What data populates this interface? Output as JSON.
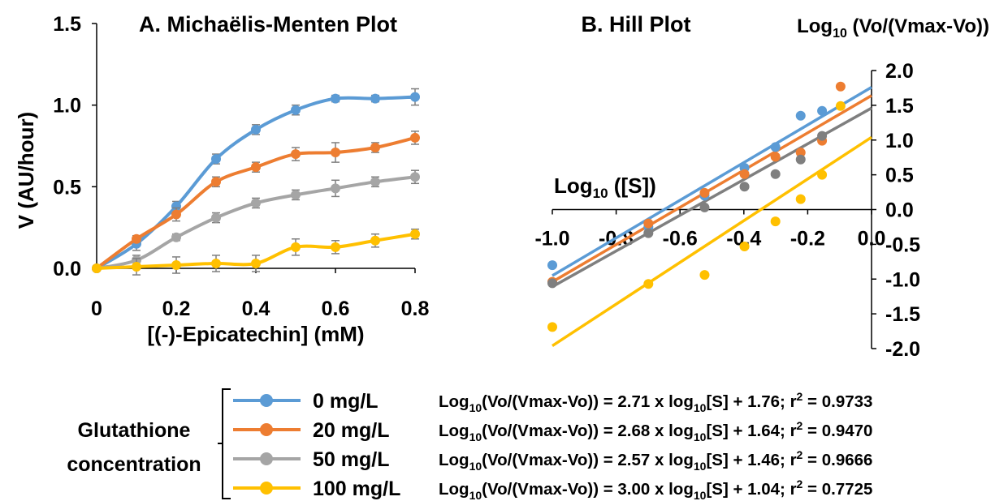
{
  "chart_data": [
    {
      "type": "line",
      "title": "A. Michaëlis-Menten Plot",
      "x_label": "[(-)-Epicatechin] (mM)",
      "y_label": "V (AU/hour)",
      "x": [
        0,
        0.1,
        0.2,
        0.3,
        0.4,
        0.5,
        0.6,
        0.7,
        0.8
      ],
      "xlim": [
        0,
        0.8
      ],
      "xticks": [
        0,
        0.2,
        0.4,
        0.6,
        0.8
      ],
      "ylim": [
        0,
        1.5
      ],
      "yticks": [
        {
          "value": 0,
          "label": "0.0"
        },
        {
          "value": 0.5,
          "label": "0.5"
        },
        {
          "value": 1,
          "label": "1.0"
        },
        {
          "value": 1.5,
          "label": "1.5"
        }
      ],
      "series": [
        {
          "name": "0 mg/L",
          "color": "#5b9bd5",
          "values": [
            0,
            0.15,
            0.38,
            0.67,
            0.85,
            0.97,
            1.04,
            1.04,
            1.05
          ],
          "errors": [
            0.01,
            0.04,
            0.03,
            0.03,
            0.03,
            0.03,
            0.02,
            0.02,
            0.05
          ]
        },
        {
          "name": "20 mg/L",
          "color": "#ed7d31",
          "values": [
            0,
            0.18,
            0.33,
            0.53,
            0.62,
            0.7,
            0.71,
            0.74,
            0.8
          ],
          "errors": [
            0.01,
            0.02,
            0.04,
            0.03,
            0.03,
            0.04,
            0.06,
            0.03,
            0.04
          ]
        },
        {
          "name": "50 mg/L",
          "color": "#a5a5a5",
          "values": [
            0,
            0.05,
            0.19,
            0.31,
            0.4,
            0.45,
            0.49,
            0.53,
            0.56
          ],
          "errors": [
            0.01,
            0.03,
            0.02,
            0.03,
            0.03,
            0.03,
            0.05,
            0.03,
            0.04
          ]
        },
        {
          "name": "100 mg/L",
          "color": "#ffc000",
          "values": [
            0,
            0.01,
            0.02,
            0.03,
            0.03,
            0.13,
            0.13,
            0.17,
            0.21
          ],
          "errors": [
            0.01,
            0.05,
            0.05,
            0.05,
            0.05,
            0.05,
            0.04,
            0.04,
            0.03
          ]
        }
      ]
    },
    {
      "type": "scatter",
      "title": "B. Hill Plot",
      "x_label": [
        "Log",
        "10",
        " ([S])"
      ],
      "y_label": [
        "Log",
        "10",
        " (Vo/(Vmax-Vo))"
      ],
      "x": [
        -1,
        -0.699,
        -0.523,
        -0.398,
        -0.301,
        -0.222,
        -0.155,
        -0.097
      ],
      "xlim": [
        -1,
        0
      ],
      "xticks": [
        {
          "value": -1,
          "label": "-1.0"
        },
        {
          "value": -0.8,
          "label": "-0.8"
        },
        {
          "value": -0.6,
          "label": "-0.6"
        },
        {
          "value": -0.4,
          "label": "-0.4"
        },
        {
          "value": -0.2,
          "label": "-0.2"
        },
        {
          "value": 0,
          "label": "0.0"
        }
      ],
      "ylim": [
        -2,
        2
      ],
      "yticks": [
        {
          "value": 2,
          "label": "2.0"
        },
        {
          "value": 1.5,
          "label": "1.5"
        },
        {
          "value": 1,
          "label": "1.0"
        },
        {
          "value": 0.5,
          "label": "0.5"
        },
        {
          "value": 0,
          "label": "0.0"
        },
        {
          "value": -0.5,
          "label": "-0.5"
        },
        {
          "value": -1,
          "label": "-1.0"
        },
        {
          "value": -1.5,
          "label": "-1.5"
        },
        {
          "value": -2,
          "label": "-2.0"
        }
      ],
      "series": [
        {
          "color": "#5b9bd5",
          "values": [
            -0.8,
            -0.25,
            0.2,
            0.6,
            0.9,
            1.35,
            1.42,
            null
          ],
          "fit": {
            "slope": 2.71,
            "intercept": 1.76,
            "r2": 0.9733
          }
        },
        {
          "color": "#ed7d31",
          "values": [
            -1.04,
            -0.2,
            0.24,
            0.51,
            0.76,
            0.82,
            0.99,
            1.77
          ],
          "fit": {
            "slope": 2.68,
            "intercept": 1.64,
            "r2": {
              "value": 0.947,
              "label": "0.9470"
            }
          }
        },
        {
          "color": "#7f7f7f",
          "values": [
            -1.06,
            -0.34,
            0.03,
            0.33,
            0.51,
            0.72,
            1.06,
            null
          ],
          "fit": {
            "slope": 2.57,
            "intercept": 1.46,
            "r2": 0.9666
          }
        },
        {
          "color": "#ffc000",
          "values": [
            -1.69,
            -1.07,
            -0.94,
            -0.53,
            -0.17,
            0.15,
            0.5,
            1.49
          ],
          "fit": {
            "slope": {
              "value": 3,
              "label": "3.00"
            },
            "intercept": 1.04,
            "r2": 0.7725
          }
        }
      ]
    }
  ],
  "legend": {
    "title": [
      "Glutathione",
      "concentration"
    ],
    "equation_parts": [
      "Log",
      "10",
      "(Vo/(Vmax-Vo)) = ",
      " x log",
      "10",
      "[S] + ",
      "; r",
      "2",
      " = "
    ]
  }
}
